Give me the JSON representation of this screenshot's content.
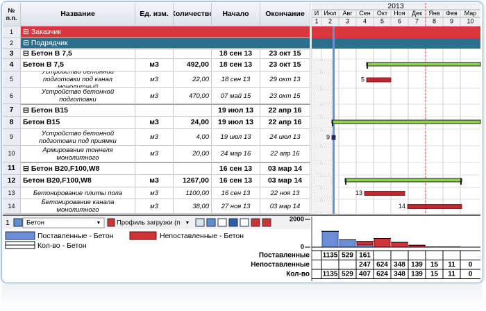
{
  "header": {
    "num": "№ п.п.",
    "name": "Название",
    "unit": "Ед. изм.",
    "qty": "Количество",
    "start": "Начало",
    "end": "Окончание"
  },
  "rows": [
    {
      "n": 1,
      "name": "Заказчик"
    },
    {
      "n": 2,
      "name": "Подрядчик"
    },
    {
      "n": 3,
      "name": "Бетон В 7,5",
      "start": "18 сен 13",
      "end": "23 окт 15"
    },
    {
      "n": 4,
      "name": "Бетон В 7,5",
      "unit": "м3",
      "qty": "492,00",
      "start": "18 сен 13",
      "end": "23 окт 15"
    },
    {
      "n": 5,
      "name": "Устройство бетонной подготовки под канал монолитный",
      "unit": "м3",
      "qty": "22,00",
      "start": "18 сен 13",
      "end": "29 окт 13"
    },
    {
      "n": 6,
      "name": "Устройство бетонной подготовки",
      "unit": "м3",
      "qty": "470,00",
      "start": "07 май 15",
      "end": "23 окт 15"
    },
    {
      "n": 7,
      "name": "Бетон В15",
      "start": "19 июл 13",
      "end": "22 апр 16"
    },
    {
      "n": 8,
      "name": "Бетон В15",
      "unit": "м3",
      "qty": "24,00",
      "start": "19 июл 13",
      "end": "22 апр 16"
    },
    {
      "n": 9,
      "name": "Устройство бетонной подготовки под приямки",
      "unit": "м3",
      "qty": "4,00",
      "start": "19 июл 13",
      "end": "24 июл 13"
    },
    {
      "n": 10,
      "name": "Армирование тоннеля монолитного",
      "unit": "м3",
      "qty": "20,00",
      "start": "24 мар 16",
      "end": "22 апр 16"
    },
    {
      "n": 11,
      "name": "Бетон В20,F100,W8",
      "start": "16 сен 13",
      "end": "03 мар 14"
    },
    {
      "n": 12,
      "name": "Бетон В20,F100,W8",
      "unit": "м3",
      "qty": "1267,00",
      "start": "16 сен 13",
      "end": "03 мар 14"
    },
    {
      "n": 13,
      "name": "Бетонирование плиты пола",
      "unit": "м3",
      "qty": "1100,00",
      "start": "16 сен 13",
      "end": "22 ноя 13"
    },
    {
      "n": 14,
      "name": "Бетонирование канала монолитного",
      "unit": "м3",
      "qty": "38,00",
      "start": "27 ноя 13",
      "end": "03 мар 14"
    }
  ],
  "timeline": {
    "year": "2013",
    "months": [
      "И",
      "Июл",
      "Авг",
      "Сен",
      "Окт",
      "Ноя",
      "Дек",
      "Янв",
      "Фев",
      "Мар"
    ],
    "periods": [
      1,
      2,
      3,
      4,
      5,
      6,
      7,
      8,
      9,
      10
    ]
  },
  "toolbar": {
    "index": 1,
    "resource": "Бетон",
    "view": "Профиль загрузки (п"
  },
  "legend": {
    "delivered": "Поставленные - Бетон",
    "undelivered": "Непоставленные - Бетон",
    "quantity": "Кол-во - Бетон"
  },
  "load_chart": {
    "type": "bar",
    "ylim": [
      0,
      2000
    ],
    "yticks": [
      0,
      2000
    ],
    "series": [
      {
        "name": "Поставленные",
        "color": "#6b8fd6",
        "values": [
          1135,
          529,
          161,
          null,
          null,
          null,
          null,
          null,
          null
        ]
      },
      {
        "name": "Непоставленные",
        "color": "#d0343a",
        "values": [
          null,
          null,
          247,
          624,
          348,
          139,
          15,
          11,
          0
        ]
      },
      {
        "name": "Кол-во",
        "color": "#000000",
        "values": [
          1135,
          529,
          407,
          624,
          348,
          139,
          15,
          11,
          0
        ]
      }
    ]
  }
}
